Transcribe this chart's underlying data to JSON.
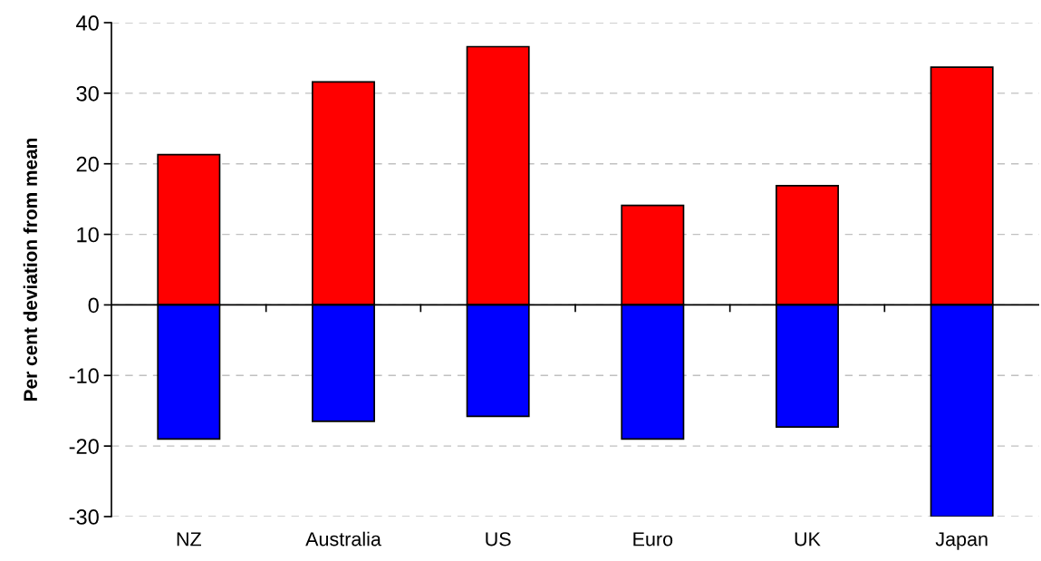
{
  "chart_data": {
    "type": "bar",
    "stacked": true,
    "ylabel": "Per cent deviation from mean",
    "categories": [
      "NZ",
      "Australia",
      "US",
      "Euro",
      "UK",
      "Japan"
    ],
    "series": [
      {
        "color": "#ff0000",
        "values": [
          21.3,
          31.6,
          36.6,
          14.1,
          16.9,
          33.7
        ]
      },
      {
        "color": "#0000ff",
        "values": [
          -19.0,
          -16.5,
          -15.8,
          -19.0,
          -17.3,
          -30.0
        ]
      }
    ],
    "ylim": [
      -30,
      40
    ],
    "yticks": [
      -30,
      -20,
      -10,
      0,
      10,
      20,
      30,
      40
    ],
    "grid": "y"
  }
}
